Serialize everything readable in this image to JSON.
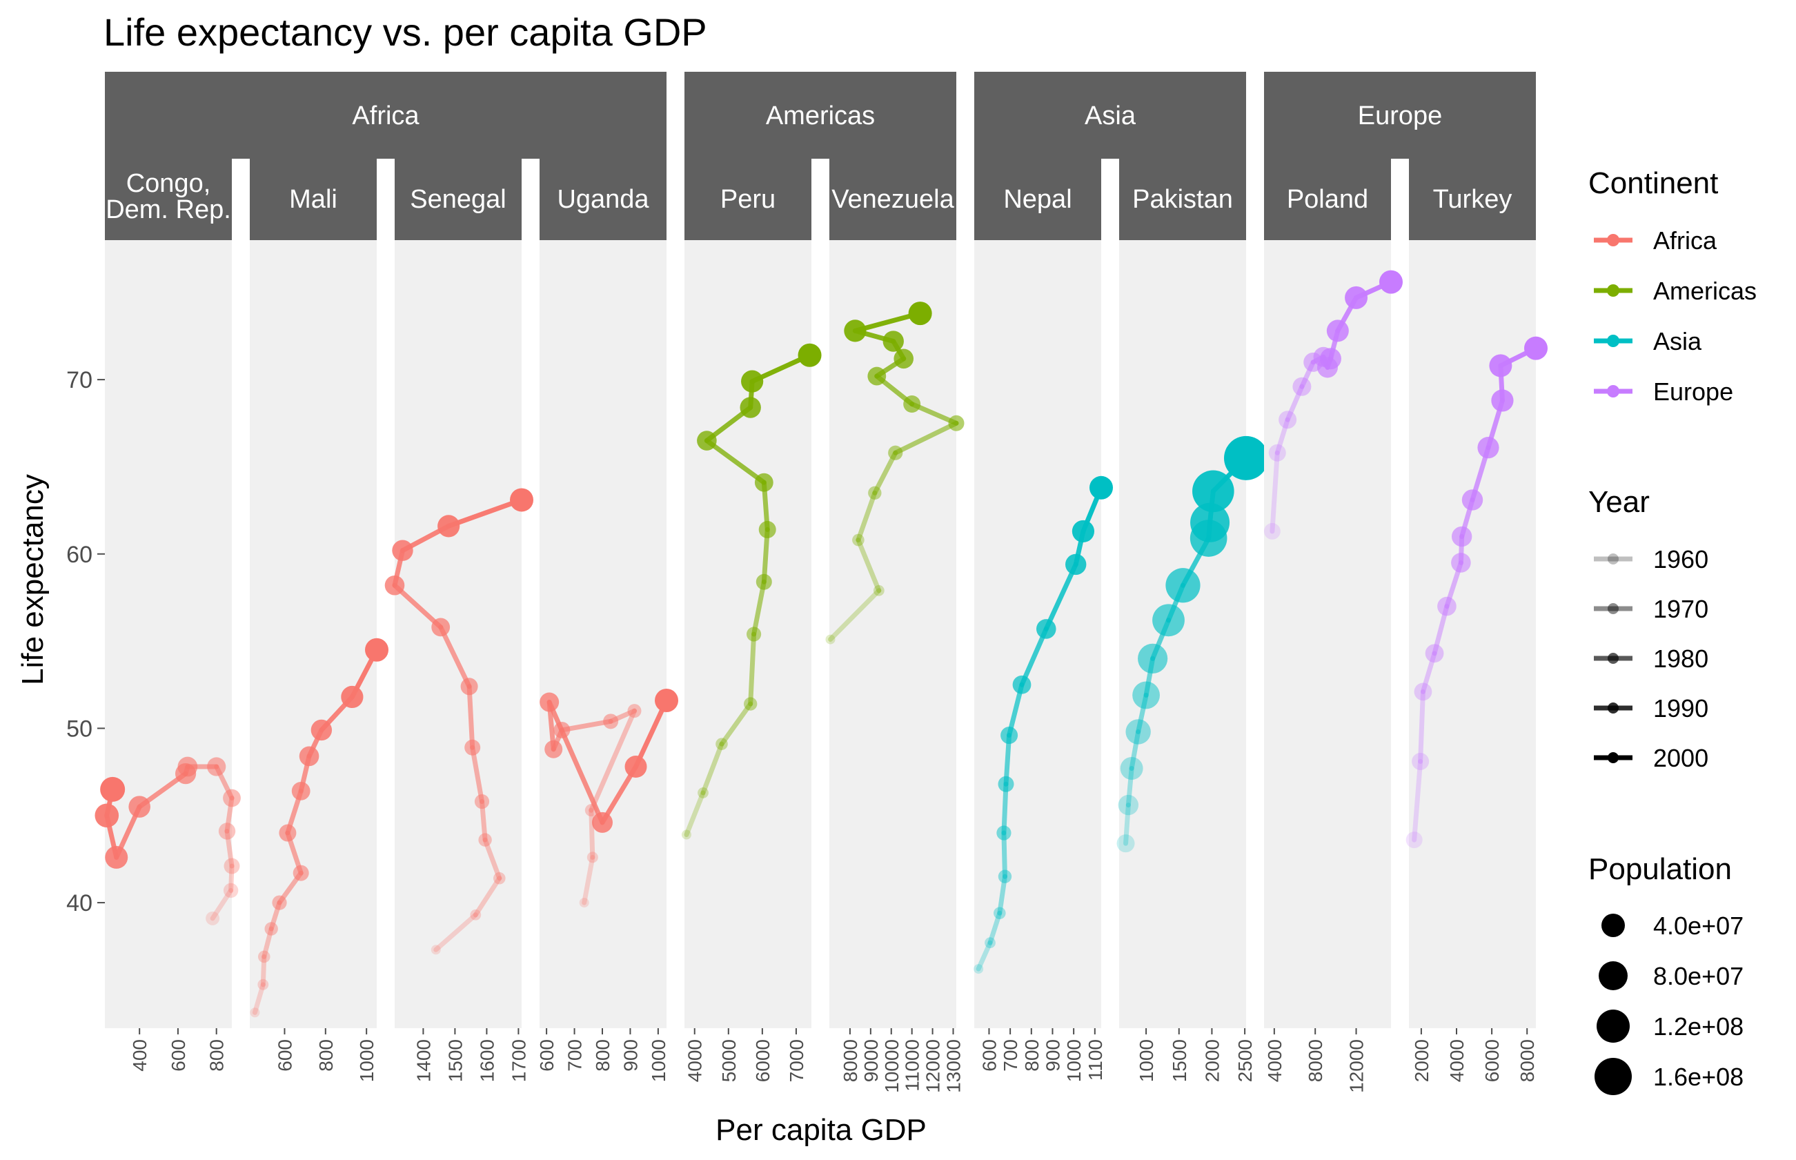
{
  "chart_data": {
    "type": "line",
    "title": "Life expectancy vs. per capita GDP",
    "xlabel": "Per capita GDP",
    "ylabel": "Life expectancy",
    "y_ticks": [
      40,
      50,
      60,
      70
    ],
    "ylim": [
      32.8,
      78
    ],
    "continents": [
      {
        "name": "Africa",
        "color": "#F8766D"
      },
      {
        "name": "Americas",
        "color": "#7CAE00"
      },
      {
        "name": "Asia",
        "color": "#00BFC4"
      },
      {
        "name": "Europe",
        "color": "#C77CFF"
      }
    ],
    "facets": [
      {
        "continent": "Africa",
        "country": "Congo, Dem. Rep.",
        "label_lines": [
          "Congo,",
          "Dem. Rep."
        ],
        "xlim": [
          220,
          880
        ],
        "x_ticks": [
          400,
          600,
          800
        ],
        "points": [
          [
            780,
            39.1
          ],
          [
            875,
            40.7
          ],
          [
            880,
            42.1
          ],
          [
            855,
            44.1
          ],
          [
            880,
            46.0
          ],
          [
            800,
            47.8
          ],
          [
            650,
            47.8
          ],
          [
            640,
            47.4
          ],
          [
            400,
            45.5
          ],
          [
            280,
            42.6
          ],
          [
            230,
            45.0
          ],
          [
            260,
            46.5
          ]
        ]
      },
      {
        "continent": "Africa",
        "country": "Mali",
        "label_lines": [
          "Mali"
        ],
        "xlim": [
          430,
          1050
        ],
        "x_ticks": [
          600,
          800,
          1000
        ],
        "points": [
          [
            455,
            33.7
          ],
          [
            495,
            35.3
          ],
          [
            500,
            36.9
          ],
          [
            535,
            38.5
          ],
          [
            575,
            40.0
          ],
          [
            680,
            41.7
          ],
          [
            615,
            44.0
          ],
          [
            680,
            46.4
          ],
          [
            720,
            48.4
          ],
          [
            780,
            49.9
          ],
          [
            930,
            51.8
          ],
          [
            1050,
            54.5
          ]
        ]
      },
      {
        "continent": "Africa",
        "country": "Senegal",
        "label_lines": [
          "Senegal"
        ],
        "xlim": [
          1310,
          1710
        ],
        "x_ticks": [
          1400,
          1500,
          1600,
          1700
        ],
        "points": [
          [
            1440,
            37.3
          ],
          [
            1565,
            39.3
          ],
          [
            1640,
            41.4
          ],
          [
            1595,
            43.6
          ],
          [
            1585,
            45.8
          ],
          [
            1555,
            48.9
          ],
          [
            1545,
            52.4
          ],
          [
            1455,
            55.8
          ],
          [
            1310,
            58.2
          ],
          [
            1335,
            60.2
          ],
          [
            1480,
            61.6
          ],
          [
            1710,
            63.1
          ]
        ]
      },
      {
        "continent": "Africa",
        "country": "Uganda",
        "label_lines": [
          "Uganda"
        ],
        "xlim": [
          575,
          1030
        ],
        "x_ticks": [
          600,
          700,
          800,
          900,
          1000
        ],
        "points": [
          [
            735,
            40.0
          ],
          [
            765,
            42.6
          ],
          [
            760,
            45.3
          ],
          [
            915,
            51.0
          ],
          [
            830,
            50.4
          ],
          [
            655,
            49.9
          ],
          [
            625,
            48.8
          ],
          [
            610,
            51.5
          ],
          [
            800,
            44.6
          ],
          [
            920,
            47.8
          ],
          [
            1030,
            51.6
          ]
        ]
      },
      {
        "continent": "Americas",
        "country": "Peru",
        "label_lines": [
          "Peru"
        ],
        "xlim": [
          3700,
          7450
        ],
        "x_ticks": [
          4000,
          5000,
          6000,
          7000
        ],
        "points": [
          [
            3760,
            43.9
          ],
          [
            4250,
            46.3
          ],
          [
            4800,
            49.1
          ],
          [
            5650,
            51.4
          ],
          [
            5750,
            55.4
          ],
          [
            6050,
            58.4
          ],
          [
            6150,
            61.4
          ],
          [
            6050,
            64.1
          ],
          [
            4360,
            66.5
          ],
          [
            5650,
            68.4
          ],
          [
            5700,
            69.9
          ],
          [
            7400,
            71.4
          ]
        ]
      },
      {
        "continent": "Americas",
        "country": "Venezuela",
        "label_lines": [
          "Venezuela"
        ],
        "xlim": [
          7000,
          13150
        ],
        "x_ticks": [
          8000,
          9000,
          10000,
          11000,
          12000,
          13000
        ],
        "points": [
          [
            7050,
            55.1
          ],
          [
            9400,
            57.9
          ],
          [
            8400,
            60.8
          ],
          [
            9200,
            63.5
          ],
          [
            10200,
            65.8
          ],
          [
            13150,
            67.5
          ],
          [
            11000,
            68.6
          ],
          [
            9300,
            70.2
          ],
          [
            10600,
            71.2
          ],
          [
            10100,
            72.2
          ],
          [
            8250,
            72.8
          ],
          [
            11400,
            73.8
          ]
        ]
      },
      {
        "continent": "Asia",
        "country": "Nepal",
        "label_lines": [
          "Nepal"
        ],
        "xlim": [
          530,
          1130
        ],
        "x_ticks": [
          600,
          700,
          800,
          900,
          1000,
          1100
        ],
        "points": [
          [
            550,
            36.2
          ],
          [
            605,
            37.7
          ],
          [
            650,
            39.4
          ],
          [
            675,
            41.5
          ],
          [
            670,
            44.0
          ],
          [
            680,
            46.8
          ],
          [
            695,
            49.6
          ],
          [
            755,
            52.5
          ],
          [
            870,
            55.7
          ],
          [
            1010,
            59.4
          ],
          [
            1045,
            61.3
          ],
          [
            1130,
            63.8
          ]
        ]
      },
      {
        "continent": "Asia",
        "country": "Pakistan",
        "label_lines": [
          "Pakistan"
        ],
        "xlim": [
          590,
          2520
        ],
        "x_ticks": [
          1000,
          1500,
          2000,
          2500
        ],
        "points": [
          [
            690,
            43.4
          ],
          [
            730,
            45.6
          ],
          [
            780,
            47.7
          ],
          [
            880,
            49.8
          ],
          [
            1000,
            51.9
          ],
          [
            1100,
            54.0
          ],
          [
            1340,
            56.2
          ],
          [
            1560,
            58.2
          ],
          [
            1950,
            60.9
          ],
          [
            1970,
            61.8
          ],
          [
            2020,
            63.6
          ],
          [
            2520,
            65.5
          ]
        ]
      },
      {
        "continent": "Europe",
        "country": "Poland",
        "label_lines": [
          "Poland"
        ],
        "xlim": [
          3000,
          15400
        ],
        "x_ticks": [
          4000,
          8000,
          12000
        ],
        "points": [
          [
            3800,
            61.3
          ],
          [
            4300,
            65.8
          ],
          [
            5300,
            67.7
          ],
          [
            6700,
            69.6
          ],
          [
            7800,
            71.0
          ],
          [
            8800,
            71.3
          ],
          [
            9200,
            70.7
          ],
          [
            9500,
            71.2
          ],
          [
            10200,
            72.8
          ],
          [
            12000,
            74.7
          ],
          [
            15400,
            75.6
          ]
        ]
      },
      {
        "continent": "Europe",
        "country": "Turkey",
        "label_lines": [
          "Turkey"
        ],
        "xlim": [
          1300,
          8500
        ],
        "x_ticks": [
          2000,
          4000,
          6000,
          8000
        ],
        "points": [
          [
            1600,
            43.6
          ],
          [
            1950,
            48.1
          ],
          [
            2100,
            52.1
          ],
          [
            2750,
            54.3
          ],
          [
            3450,
            57.0
          ],
          [
            4250,
            59.5
          ],
          [
            4300,
            61.0
          ],
          [
            4900,
            63.1
          ],
          [
            5800,
            66.1
          ],
          [
            6600,
            68.8
          ],
          [
            6500,
            70.8
          ],
          [
            8500,
            71.8
          ]
        ]
      }
    ],
    "legend": {
      "continent": {
        "title": "Continent",
        "items": [
          "Africa",
          "Americas",
          "Asia",
          "Europe"
        ]
      },
      "year": {
        "title": "Year",
        "items": [
          "1960",
          "1970",
          "1980",
          "1990",
          "2000"
        ],
        "alphas": [
          0.25,
          0.45,
          0.65,
          0.82,
          1.0
        ]
      },
      "population": {
        "title": "Population",
        "items": [
          "4.0e+07",
          "8.0e+07",
          "1.2e+08",
          "1.6e+08"
        ]
      }
    }
  }
}
